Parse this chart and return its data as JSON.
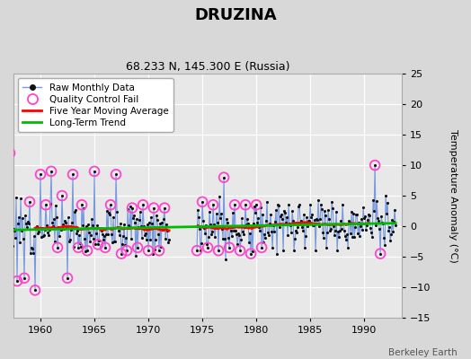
{
  "title": "DRUZINA",
  "subtitle": "68.233 N, 145.300 E (Russia)",
  "ylabel": "Temperature Anomaly (°C)",
  "credit": "Berkeley Earth",
  "xlim": [
    1957.5,
    1993.5
  ],
  "ylim": [
    -15,
    25
  ],
  "yticks": [
    -15,
    -10,
    -5,
    0,
    5,
    10,
    15,
    20,
    25
  ],
  "xticks": [
    1960,
    1965,
    1970,
    1975,
    1980,
    1985,
    1990
  ],
  "bg_color": "#d8d8d8",
  "plot_bg_color": "#e8e8e8",
  "raw_line_color": "#7799dd",
  "raw_dot_color": "#111111",
  "qc_fail_color": "#ff44cc",
  "moving_avg_color": "#ff0000",
  "trend_color": "#00bb00",
  "seed": 12,
  "start_year": 1957,
  "n_months": 432
}
